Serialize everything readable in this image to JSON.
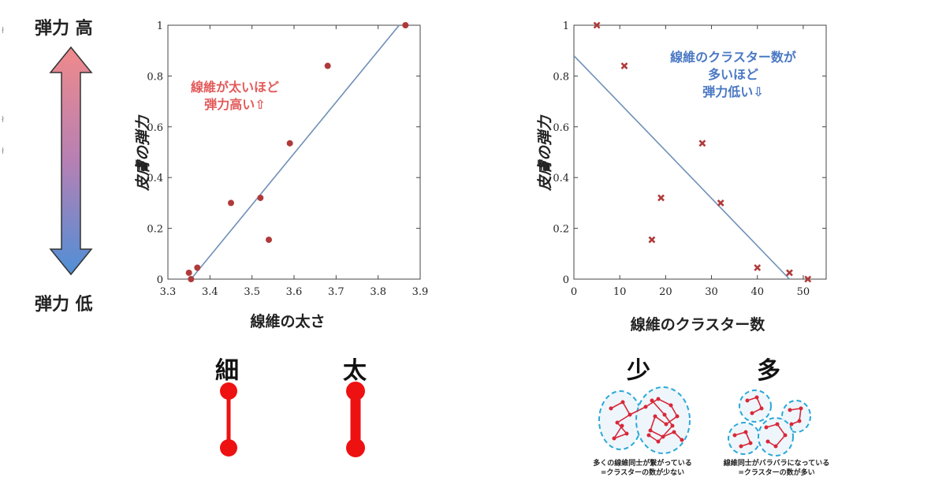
{
  "left_scale": {
    "top_label": "弾力 高",
    "bottom_label": "弾力 低",
    "colors": {
      "top": "#f08a8a",
      "bottom": "#4f8fd6"
    }
  },
  "chart_data": [
    {
      "type": "scatter",
      "xlabel": "線維の太さ",
      "ylabel": "皮膚の弾力",
      "xlim": [
        3.3,
        3.9
      ],
      "ylim": [
        0,
        1
      ],
      "xticks": [
        "3.3",
        "3.4",
        "3.5",
        "3.6",
        "3.7",
        "3.8",
        "3.9"
      ],
      "yticks": [
        "0",
        "0.2",
        "0.4",
        "0.6",
        "0.8",
        "1"
      ],
      "marker": "circle",
      "points": [
        {
          "x": 3.35,
          "y": 0.025
        },
        {
          "x": 3.355,
          "y": 0.0
        },
        {
          "x": 3.37,
          "y": 0.045
        },
        {
          "x": 3.45,
          "y": 0.3
        },
        {
          "x": 3.52,
          "y": 0.32
        },
        {
          "x": 3.54,
          "y": 0.155
        },
        {
          "x": 3.59,
          "y": 0.535
        },
        {
          "x": 3.68,
          "y": 0.84
        },
        {
          "x": 3.865,
          "y": 1.0
        }
      ],
      "trend": [
        {
          "x": 3.355,
          "y": 0.0
        },
        {
          "x": 3.85,
          "y": 1.0
        }
      ],
      "annotation": [
        "線維が太いほど",
        "弾力高い⇧"
      ],
      "annotation_color": "#e35a5a"
    },
    {
      "type": "scatter",
      "xlabel": "線維のクラスター数",
      "ylabel": "皮膚の弾力",
      "xlim": [
        0,
        55
      ],
      "ylim": [
        0,
        1
      ],
      "xticks": [
        "0",
        "10",
        "20",
        "30",
        "40",
        "50"
      ],
      "yticks": [
        "0",
        "0.2",
        "0.4",
        "0.6",
        "0.8",
        "1"
      ],
      "marker": "x",
      "points": [
        {
          "x": 5,
          "y": 1.0
        },
        {
          "x": 11,
          "y": 0.84
        },
        {
          "x": 17,
          "y": 0.155
        },
        {
          "x": 19,
          "y": 0.32
        },
        {
          "x": 28,
          "y": 0.535
        },
        {
          "x": 32,
          "y": 0.3
        },
        {
          "x": 40,
          "y": 0.045
        },
        {
          "x": 47,
          "y": 0.025
        },
        {
          "x": 51,
          "y": 0.0
        }
      ],
      "trend": [
        {
          "x": 0,
          "y": 0.88
        },
        {
          "x": 47,
          "y": 0.0
        }
      ],
      "annotation": [
        "線維のクラスター数が",
        "多いほど",
        "弾力低い⇩"
      ],
      "annotation_color": "#4a78c4"
    }
  ],
  "thickness": {
    "thin_label": "細",
    "thick_label": "太",
    "color": "#ee1111"
  },
  "clusters": {
    "few_label": "少",
    "many_label": "多",
    "few_caption": [
      "多くの線維同士が繋がっている",
      "=クラスターの数が少ない"
    ],
    "many_caption": [
      "線維同士がバラバラになっている",
      "=クラスターの数が多い"
    ],
    "ring_color": "#2aa8d8",
    "node_color": "#d8283a"
  },
  "marker_color": "#b03a3a",
  "trend_color": "#6e8fb8"
}
